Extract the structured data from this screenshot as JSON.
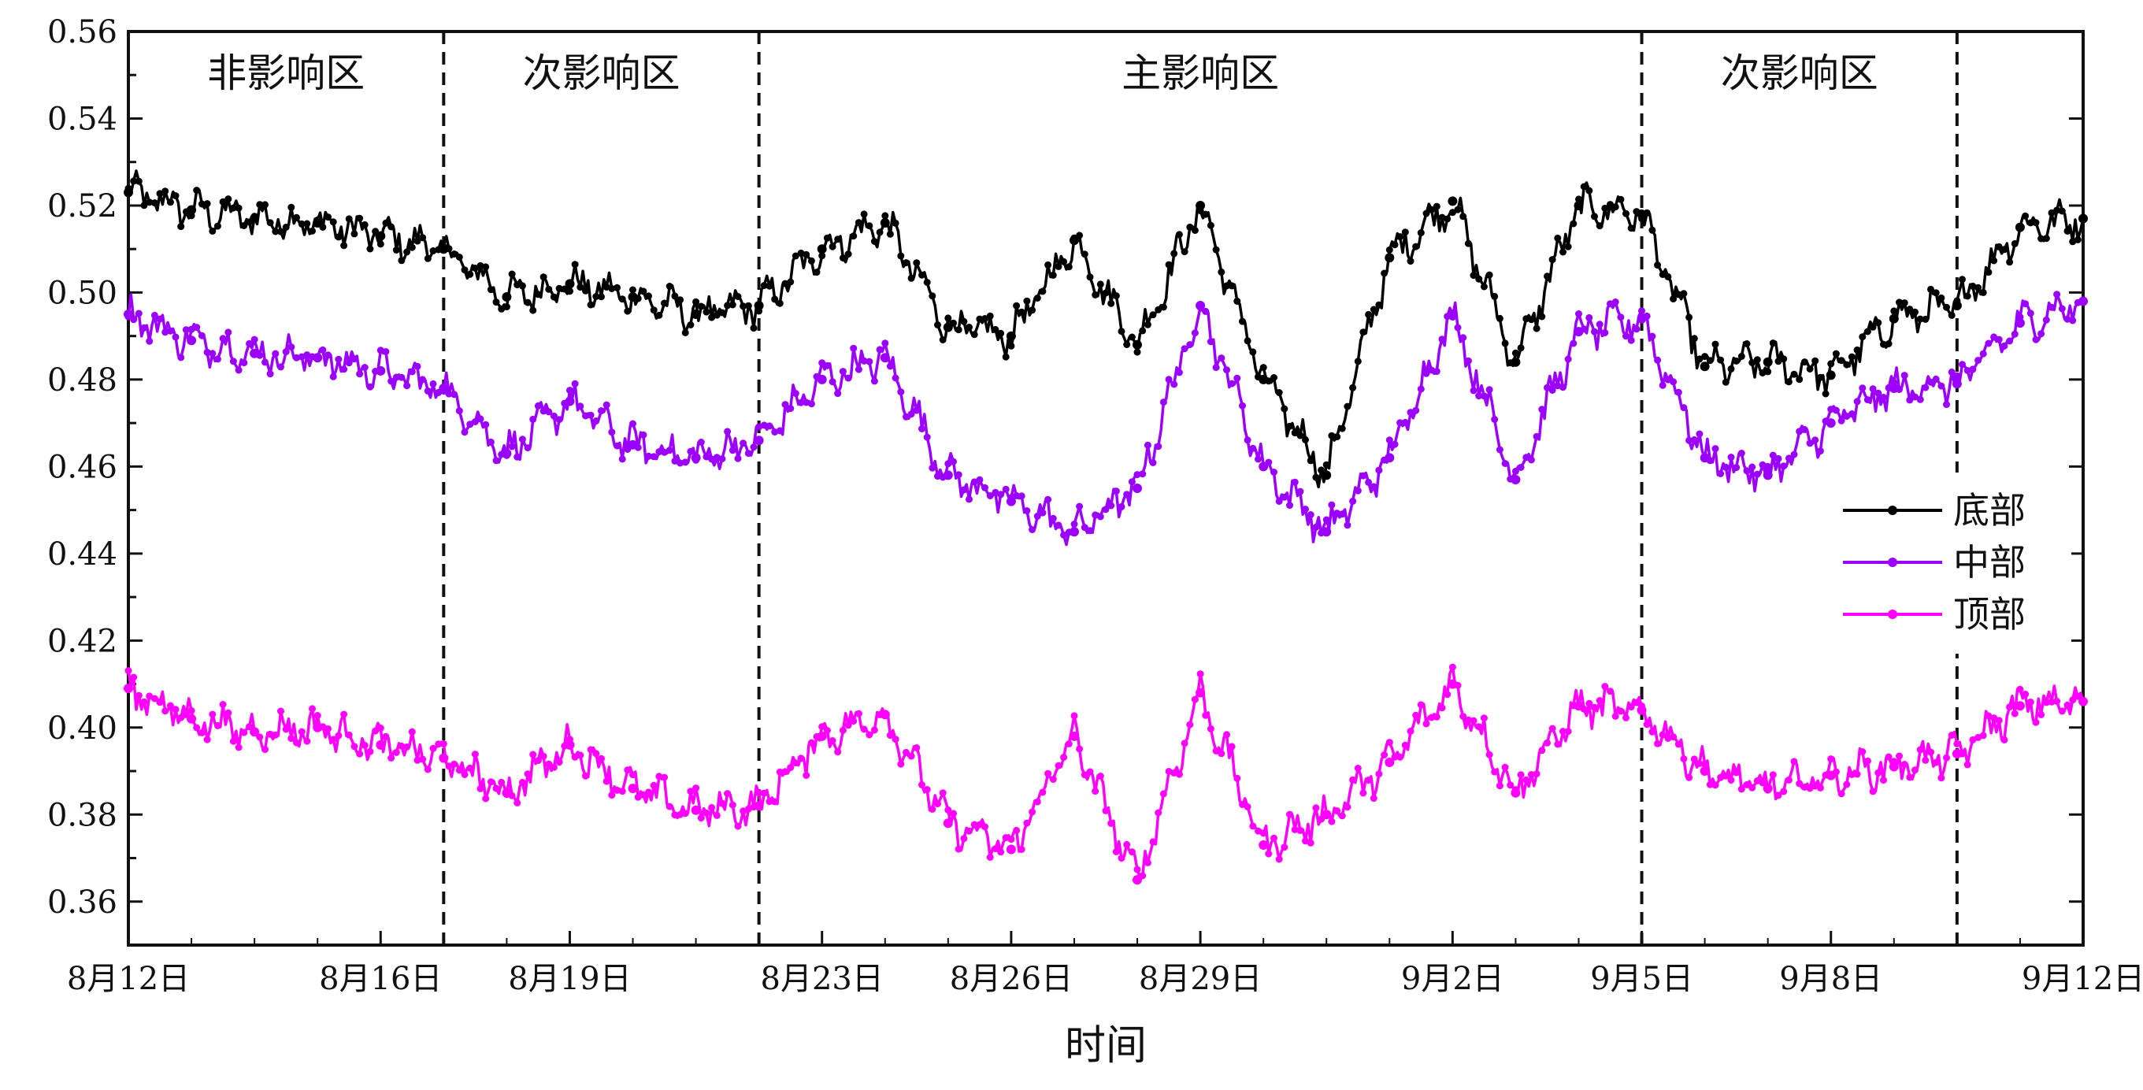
{
  "chart_data": {
    "type": "line",
    "title": "",
    "xlabel": "时间",
    "ylabel": "",
    "ylim": [
      0.35,
      0.56
    ],
    "yticks": [
      0.36,
      0.38,
      0.4,
      0.42,
      0.44,
      0.46,
      0.48,
      0.5,
      0.52,
      0.54,
      0.56
    ],
    "ytick_labels": [
      "0.36",
      "0.38",
      "0.40",
      "0.42",
      "0.44",
      "0.46",
      "0.48",
      "0.50",
      "0.52",
      "0.54",
      "0.56"
    ],
    "xlim": [
      "2023-08-12",
      "2023-09-12"
    ],
    "xticks": [
      {
        "date": "2023-08-12",
        "label": "8月12日"
      },
      {
        "date": "2023-08-16",
        "label": "8月16日"
      },
      {
        "date": "2023-08-19",
        "label": "8月19日"
      },
      {
        "date": "2023-08-23",
        "label": "8月23日"
      },
      {
        "date": "2023-08-26",
        "label": "8月26日"
      },
      {
        "date": "2023-08-29",
        "label": "8月29日"
      },
      {
        "date": "2023-09-02",
        "label": "9月2日"
      },
      {
        "date": "2023-09-05",
        "label": "9月5日"
      },
      {
        "date": "2023-09-08",
        "label": "9月8日"
      },
      {
        "date": "2023-09-12",
        "label": "9月12日"
      }
    ],
    "region_boundaries": [
      "2023-08-17",
      "2023-08-22",
      "2023-09-05",
      "2023-09-10"
    ],
    "regions": [
      {
        "label": "非影响区",
        "start": "2023-08-12",
        "end": "2023-08-17"
      },
      {
        "label": "次影响区",
        "start": "2023-08-17",
        "end": "2023-08-22"
      },
      {
        "label": "主影响区",
        "start": "2023-08-22",
        "end": "2023-09-05"
      },
      {
        "label": "次影响区",
        "start": "2023-09-05",
        "end": "2023-09-10"
      }
    ],
    "legend_position": "right",
    "series": [
      {
        "name": "底部",
        "color": "#000000",
        "x": [
          "2023-08-12",
          "2023-08-13",
          "2023-08-14",
          "2023-08-15",
          "2023-08-16",
          "2023-08-17",
          "2023-08-18",
          "2023-08-19",
          "2023-08-20",
          "2023-08-21",
          "2023-08-22",
          "2023-08-23",
          "2023-08-24",
          "2023-08-25",
          "2023-08-26",
          "2023-08-27",
          "2023-08-28",
          "2023-08-29",
          "2023-08-30",
          "2023-08-31",
          "2023-09-01",
          "2023-09-02",
          "2023-09-03",
          "2023-09-04",
          "2023-09-05",
          "2023-09-06",
          "2023-09-07",
          "2023-09-08",
          "2023-09-09",
          "2023-09-10",
          "2023-09-11",
          "2023-09-12"
        ],
        "values": [
          0.523,
          0.519,
          0.517,
          0.516,
          0.513,
          0.51,
          0.499,
          0.502,
          0.499,
          0.495,
          0.497,
          0.51,
          0.516,
          0.492,
          0.49,
          0.512,
          0.488,
          0.52,
          0.48,
          0.458,
          0.508,
          0.521,
          0.484,
          0.52,
          0.518,
          0.483,
          0.484,
          0.481,
          0.494,
          0.497,
          0.515,
          0.517
        ]
      },
      {
        "name": "中部",
        "color": "#9b00ff",
        "x": [
          "2023-08-12",
          "2023-08-13",
          "2023-08-14",
          "2023-08-15",
          "2023-08-16",
          "2023-08-17",
          "2023-08-18",
          "2023-08-19",
          "2023-08-20",
          "2023-08-21",
          "2023-08-22",
          "2023-08-23",
          "2023-08-24",
          "2023-08-25",
          "2023-08-26",
          "2023-08-27",
          "2023-08-28",
          "2023-08-29",
          "2023-08-30",
          "2023-08-31",
          "2023-09-01",
          "2023-09-02",
          "2023-09-03",
          "2023-09-04",
          "2023-09-05",
          "2023-09-06",
          "2023-09-07",
          "2023-09-08",
          "2023-09-09",
          "2023-09-10",
          "2023-09-11",
          "2023-09-12"
        ],
        "values": [
          0.495,
          0.489,
          0.486,
          0.485,
          0.482,
          0.478,
          0.463,
          0.475,
          0.465,
          0.462,
          0.466,
          0.48,
          0.485,
          0.458,
          0.452,
          0.445,
          0.455,
          0.497,
          0.46,
          0.445,
          0.462,
          0.495,
          0.457,
          0.491,
          0.494,
          0.462,
          0.458,
          0.47,
          0.478,
          0.479,
          0.493,
          0.498
        ]
      },
      {
        "name": "顶部",
        "color": "#ff00ff",
        "x": [
          "2023-08-12",
          "2023-08-13",
          "2023-08-14",
          "2023-08-15",
          "2023-08-16",
          "2023-08-17",
          "2023-08-18",
          "2023-08-19",
          "2023-08-20",
          "2023-08-21",
          "2023-08-22",
          "2023-08-23",
          "2023-08-24",
          "2023-08-25",
          "2023-08-26",
          "2023-08-27",
          "2023-08-28",
          "2023-08-29",
          "2023-08-30",
          "2023-08-31",
          "2023-09-01",
          "2023-09-02",
          "2023-09-03",
          "2023-09-04",
          "2023-09-05",
          "2023-09-06",
          "2023-09-07",
          "2023-09-08",
          "2023-09-09",
          "2023-09-10",
          "2023-09-11",
          "2023-09-12"
        ],
        "values": [
          0.409,
          0.402,
          0.399,
          0.4,
          0.396,
          0.393,
          0.385,
          0.396,
          0.386,
          0.381,
          0.382,
          0.398,
          0.403,
          0.378,
          0.372,
          0.398,
          0.365,
          0.408,
          0.373,
          0.38,
          0.392,
          0.41,
          0.385,
          0.405,
          0.404,
          0.39,
          0.386,
          0.389,
          0.391,
          0.394,
          0.405,
          0.406
        ]
      }
    ]
  }
}
